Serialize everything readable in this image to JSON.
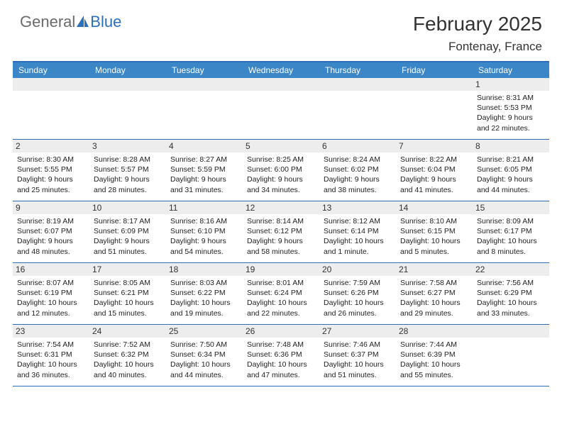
{
  "brand": {
    "part1": "General",
    "part2": "Blue"
  },
  "title": "February 2025",
  "location": "Fontenay, France",
  "colors": {
    "header_bg": "#3b86c6",
    "header_border": "#2c6fbb",
    "day_num_bg": "#ededed",
    "logo_gray": "#6a6a6a",
    "logo_blue": "#2c6fbb"
  },
  "day_names": [
    "Sunday",
    "Monday",
    "Tuesday",
    "Wednesday",
    "Thursday",
    "Friday",
    "Saturday"
  ],
  "weeks": [
    [
      null,
      null,
      null,
      null,
      null,
      null,
      {
        "n": "1",
        "sr": "8:31 AM",
        "ss": "5:53 PM",
        "dl": "9 hours and 22 minutes."
      }
    ],
    [
      {
        "n": "2",
        "sr": "8:30 AM",
        "ss": "5:55 PM",
        "dl": "9 hours and 25 minutes."
      },
      {
        "n": "3",
        "sr": "8:28 AM",
        "ss": "5:57 PM",
        "dl": "9 hours and 28 minutes."
      },
      {
        "n": "4",
        "sr": "8:27 AM",
        "ss": "5:59 PM",
        "dl": "9 hours and 31 minutes."
      },
      {
        "n": "5",
        "sr": "8:25 AM",
        "ss": "6:00 PM",
        "dl": "9 hours and 34 minutes."
      },
      {
        "n": "6",
        "sr": "8:24 AM",
        "ss": "6:02 PM",
        "dl": "9 hours and 38 minutes."
      },
      {
        "n": "7",
        "sr": "8:22 AM",
        "ss": "6:04 PM",
        "dl": "9 hours and 41 minutes."
      },
      {
        "n": "8",
        "sr": "8:21 AM",
        "ss": "6:05 PM",
        "dl": "9 hours and 44 minutes."
      }
    ],
    [
      {
        "n": "9",
        "sr": "8:19 AM",
        "ss": "6:07 PM",
        "dl": "9 hours and 48 minutes."
      },
      {
        "n": "10",
        "sr": "8:17 AM",
        "ss": "6:09 PM",
        "dl": "9 hours and 51 minutes."
      },
      {
        "n": "11",
        "sr": "8:16 AM",
        "ss": "6:10 PM",
        "dl": "9 hours and 54 minutes."
      },
      {
        "n": "12",
        "sr": "8:14 AM",
        "ss": "6:12 PM",
        "dl": "9 hours and 58 minutes."
      },
      {
        "n": "13",
        "sr": "8:12 AM",
        "ss": "6:14 PM",
        "dl": "10 hours and 1 minute."
      },
      {
        "n": "14",
        "sr": "8:10 AM",
        "ss": "6:15 PM",
        "dl": "10 hours and 5 minutes."
      },
      {
        "n": "15",
        "sr": "8:09 AM",
        "ss": "6:17 PM",
        "dl": "10 hours and 8 minutes."
      }
    ],
    [
      {
        "n": "16",
        "sr": "8:07 AM",
        "ss": "6:19 PM",
        "dl": "10 hours and 12 minutes."
      },
      {
        "n": "17",
        "sr": "8:05 AM",
        "ss": "6:21 PM",
        "dl": "10 hours and 15 minutes."
      },
      {
        "n": "18",
        "sr": "8:03 AM",
        "ss": "6:22 PM",
        "dl": "10 hours and 19 minutes."
      },
      {
        "n": "19",
        "sr": "8:01 AM",
        "ss": "6:24 PM",
        "dl": "10 hours and 22 minutes."
      },
      {
        "n": "20",
        "sr": "7:59 AM",
        "ss": "6:26 PM",
        "dl": "10 hours and 26 minutes."
      },
      {
        "n": "21",
        "sr": "7:58 AM",
        "ss": "6:27 PM",
        "dl": "10 hours and 29 minutes."
      },
      {
        "n": "22",
        "sr": "7:56 AM",
        "ss": "6:29 PM",
        "dl": "10 hours and 33 minutes."
      }
    ],
    [
      {
        "n": "23",
        "sr": "7:54 AM",
        "ss": "6:31 PM",
        "dl": "10 hours and 36 minutes."
      },
      {
        "n": "24",
        "sr": "7:52 AM",
        "ss": "6:32 PM",
        "dl": "10 hours and 40 minutes."
      },
      {
        "n": "25",
        "sr": "7:50 AM",
        "ss": "6:34 PM",
        "dl": "10 hours and 44 minutes."
      },
      {
        "n": "26",
        "sr": "7:48 AM",
        "ss": "6:36 PM",
        "dl": "10 hours and 47 minutes."
      },
      {
        "n": "27",
        "sr": "7:46 AM",
        "ss": "6:37 PM",
        "dl": "10 hours and 51 minutes."
      },
      {
        "n": "28",
        "sr": "7:44 AM",
        "ss": "6:39 PM",
        "dl": "10 hours and 55 minutes."
      },
      null
    ]
  ],
  "labels": {
    "sunrise": "Sunrise: ",
    "sunset": "Sunset: ",
    "daylight": "Daylight: "
  }
}
